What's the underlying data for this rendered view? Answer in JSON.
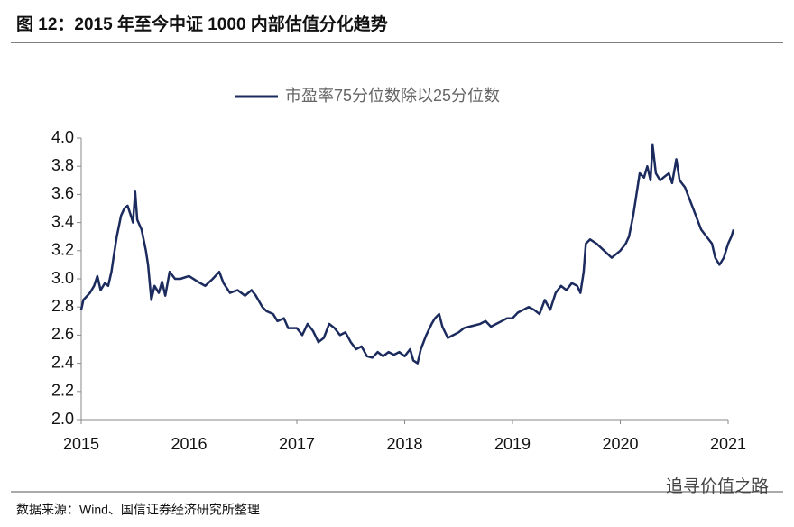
{
  "chart_data": {
    "type": "line",
    "title": "图 12：2015 年至今中证 1000 内部估值分化趋势",
    "source": "数据来源：Wind、国信证券经济研究所整理",
    "watermark": "追寻价值之路",
    "xlim": [
      2015,
      2021
    ],
    "xticks": [
      2015,
      2016,
      2017,
      2018,
      2019,
      2020,
      2021
    ],
    "ylim": [
      2.0,
      4.0
    ],
    "yticks": [
      {
        "value": 2.0,
        "label": "2.0"
      },
      {
        "value": 2.2,
        "label": "2.2"
      },
      {
        "value": 2.4,
        "label": "2.4"
      },
      {
        "value": 2.6,
        "label": "2.6"
      },
      {
        "value": 2.8,
        "label": "2.8"
      },
      {
        "value": 3.0,
        "label": "3.0"
      },
      {
        "value": 3.2,
        "label": "3.2"
      },
      {
        "value": 3.4,
        "label": "3.4"
      },
      {
        "value": 3.6,
        "label": "3.6"
      },
      {
        "value": 3.8,
        "label": "3.8"
      },
      {
        "value": 4.0,
        "label": "4.0"
      }
    ],
    "legend": "top",
    "x": [
      2015.0,
      2015.02,
      2015.08,
      2015.12,
      2015.15,
      2015.18,
      2015.22,
      2015.25,
      2015.28,
      2015.3,
      2015.33,
      2015.37,
      2015.4,
      2015.43,
      2015.46,
      2015.48,
      2015.5,
      2015.52,
      2015.56,
      2015.6,
      2015.62,
      2015.65,
      2015.68,
      2015.72,
      2015.75,
      2015.78,
      2015.82,
      2015.87,
      2015.92,
      2016.0,
      2016.08,
      2016.15,
      2016.22,
      2016.28,
      2016.32,
      2016.38,
      2016.45,
      2016.52,
      2016.58,
      2016.62,
      2016.68,
      2016.72,
      2016.78,
      2016.82,
      2016.88,
      2016.92,
      2017.0,
      2017.05,
      2017.1,
      2017.15,
      2017.2,
      2017.25,
      2017.3,
      2017.35,
      2017.4,
      2017.45,
      2017.5,
      2017.55,
      2017.6,
      2017.65,
      2017.7,
      2017.75,
      2017.8,
      2017.85,
      2017.9,
      2017.95,
      2018.0,
      2018.05,
      2018.08,
      2018.12,
      2018.15,
      2018.2,
      2018.25,
      2018.28,
      2018.32,
      2018.35,
      2018.4,
      2018.45,
      2018.5,
      2018.55,
      2018.6,
      2018.65,
      2018.7,
      2018.75,
      2018.8,
      2018.85,
      2018.9,
      2018.95,
      2019.0,
      2019.05,
      2019.1,
      2019.15,
      2019.2,
      2019.25,
      2019.3,
      2019.35,
      2019.4,
      2019.45,
      2019.5,
      2019.55,
      2019.6,
      2019.63,
      2019.66,
      2019.68,
      2019.72,
      2019.78,
      2019.85,
      2019.92,
      2020.0,
      2020.05,
      2020.08,
      2020.12,
      2020.15,
      2020.18,
      2020.22,
      2020.25,
      2020.28,
      2020.3,
      2020.33,
      2020.37,
      2020.4,
      2020.45,
      2020.48,
      2020.52,
      2020.55,
      2020.6,
      2020.65,
      2020.7,
      2020.75,
      2020.8,
      2020.85,
      2020.88,
      2020.92,
      2020.96,
      2021.0,
      2021.03,
      2021.05
    ],
    "series": [
      {
        "name": "市盈率75分位数除以25分位数",
        "color": "#1c2b5e",
        "values": [
          2.78,
          2.85,
          2.9,
          2.95,
          3.02,
          2.92,
          2.97,
          2.95,
          3.05,
          3.15,
          3.3,
          3.45,
          3.5,
          3.52,
          3.45,
          3.4,
          3.62,
          3.42,
          3.35,
          3.2,
          3.1,
          2.85,
          2.95,
          2.9,
          2.98,
          2.88,
          3.05,
          3.0,
          3.0,
          3.02,
          2.98,
          2.95,
          3.0,
          3.05,
          2.97,
          2.9,
          2.92,
          2.88,
          2.92,
          2.88,
          2.8,
          2.77,
          2.75,
          2.7,
          2.72,
          2.65,
          2.65,
          2.6,
          2.68,
          2.63,
          2.55,
          2.58,
          2.68,
          2.65,
          2.6,
          2.62,
          2.55,
          2.5,
          2.52,
          2.45,
          2.44,
          2.48,
          2.45,
          2.48,
          2.46,
          2.48,
          2.45,
          2.5,
          2.42,
          2.4,
          2.5,
          2.6,
          2.68,
          2.72,
          2.75,
          2.66,
          2.58,
          2.6,
          2.62,
          2.65,
          2.66,
          2.67,
          2.68,
          2.7,
          2.66,
          2.68,
          2.7,
          2.72,
          2.72,
          2.76,
          2.78,
          2.8,
          2.78,
          2.75,
          2.85,
          2.78,
          2.9,
          2.95,
          2.92,
          2.97,
          2.95,
          2.9,
          3.05,
          3.25,
          3.28,
          3.25,
          3.2,
          3.15,
          3.2,
          3.25,
          3.3,
          3.45,
          3.6,
          3.75,
          3.72,
          3.8,
          3.7,
          3.95,
          3.75,
          3.7,
          3.72,
          3.75,
          3.68,
          3.85,
          3.7,
          3.65,
          3.55,
          3.45,
          3.35,
          3.3,
          3.25,
          3.15,
          3.1,
          3.15,
          3.25,
          3.3,
          3.35
        ]
      }
    ]
  }
}
